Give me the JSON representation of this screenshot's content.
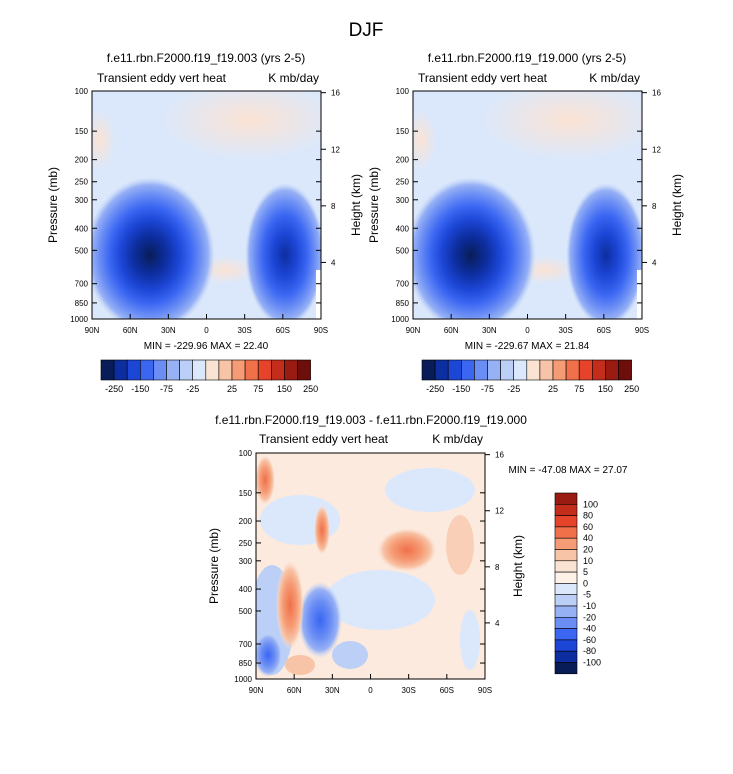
{
  "figure_title": "DJF",
  "chart_data": [
    {
      "type": "heatmap",
      "title": "f.e11.rbn.F2000.f19_f19.003 (yrs 2-5)",
      "subtitle_left": "Transient eddy vert heat",
      "subtitle_right": "K mb/day",
      "xlabel": "",
      "ylabel": "Pressure (mb)",
      "ylabel_right": "Height (km)",
      "x_ticks": [
        "90N",
        "60N",
        "30N",
        "0",
        "30S",
        "60S",
        "90S"
      ],
      "y_ticks": [
        "100",
        "150",
        "200",
        "250",
        "300",
        "400",
        "500",
        "700",
        "850",
        "1000"
      ],
      "y_ticks_right": [
        "16",
        "12",
        "8",
        "4"
      ],
      "y_scale": "log",
      "minmax_text": "MIN = -229.96   MAX = 22.40",
      "min": -229.96,
      "max": 22.4,
      "colorbar_labels": [
        "-250",
        "-150",
        "-75",
        "-25",
        "25",
        "75",
        "150",
        "250"
      ],
      "colors": [
        "#081d58",
        "#0d2ea0",
        "#1c46d6",
        "#3a66f2",
        "#6b8ef5",
        "#97b1f5",
        "#bcd0f7",
        "#dbe8fb",
        "#fbe3d4",
        "#f8c4a7",
        "#f59c76",
        "#f0704a",
        "#e5442a",
        "#c42d1c",
        "#9a1b12",
        "#6e0e0a"
      ]
    },
    {
      "type": "heatmap",
      "title": "f.e11.rbn.F2000.f19_f19.000 (yrs 2-5)",
      "subtitle_left": "Transient eddy vert heat",
      "subtitle_right": "K mb/day",
      "xlabel": "",
      "ylabel": "Pressure (mb)",
      "ylabel_right": "Height (km)",
      "x_ticks": [
        "90N",
        "60N",
        "30N",
        "0",
        "30S",
        "60S",
        "90S"
      ],
      "y_ticks": [
        "100",
        "150",
        "200",
        "250",
        "300",
        "400",
        "500",
        "700",
        "850",
        "1000"
      ],
      "y_ticks_right": [
        "16",
        "12",
        "8",
        "4"
      ],
      "y_scale": "log",
      "minmax_text": "MIN = -229.67   MAX = 21.84",
      "min": -229.67,
      "max": 21.84,
      "colorbar_labels": [
        "-250",
        "-150",
        "-75",
        "-25",
        "25",
        "75",
        "150",
        "250"
      ]
    },
    {
      "type": "heatmap",
      "title": "f.e11.rbn.F2000.f19_f19.003 - f.e11.rbn.F2000.f19_f19.000",
      "subtitle_left": "Transient eddy vert heat",
      "subtitle_right": "K mb/day",
      "xlabel": "",
      "ylabel": "Pressure (mb)",
      "ylabel_right": "Height (km)",
      "x_ticks": [
        "90N",
        "60N",
        "30N",
        "0",
        "30S",
        "60S",
        "90S"
      ],
      "y_ticks": [
        "100",
        "150",
        "200",
        "250",
        "300",
        "400",
        "500",
        "700",
        "850",
        "1000"
      ],
      "y_ticks_right": [
        "16",
        "12",
        "8",
        "4"
      ],
      "y_scale": "log",
      "minmax_text": "MIN = -47.08   MAX = 27.07",
      "min": -47.08,
      "max": 27.07,
      "colorbar_labels": [
        "100",
        "80",
        "60",
        "40",
        "20",
        "10",
        "5",
        "0",
        "-5",
        "-10",
        "-20",
        "-40",
        "-60",
        "-80",
        "-100"
      ],
      "colors": [
        "#9a1b12",
        "#c42d1c",
        "#e5442a",
        "#f0704a",
        "#f59c76",
        "#f8c4a7",
        "#fbe3d4",
        "#fdf1e8",
        "#dbe8fb",
        "#bcd0f7",
        "#97b1f5",
        "#6b8ef5",
        "#3a66f2",
        "#1c46d6",
        "#0d2ea0",
        "#081d58"
      ]
    }
  ]
}
